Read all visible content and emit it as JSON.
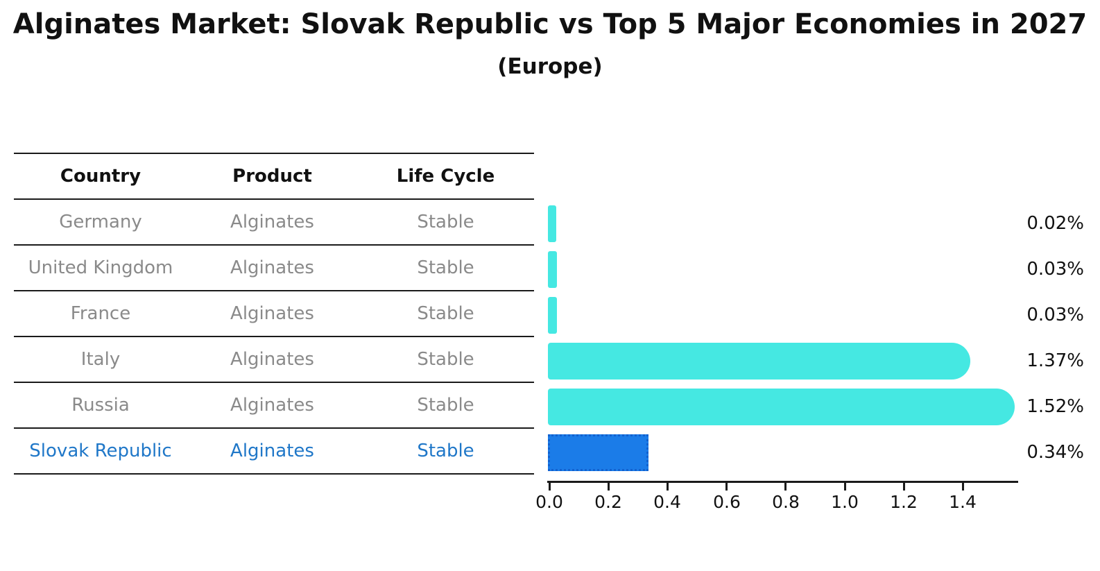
{
  "title": "Alginates Market: Slovak Republic vs Top 5 Major Economies in 2027",
  "subtitle": "(Europe)",
  "table": {
    "headers": [
      "Country",
      "Product",
      "Life Cycle"
    ],
    "rows": [
      {
        "country": "Germany",
        "product": "Alginates",
        "life_cycle": "Stable",
        "highlight": false
      },
      {
        "country": "United Kingdom",
        "product": "Alginates",
        "life_cycle": "Stable",
        "highlight": false
      },
      {
        "country": "France",
        "product": "Alginates",
        "life_cycle": "Stable",
        "highlight": false
      },
      {
        "country": "Italy",
        "product": "Alginates",
        "life_cycle": "Stable",
        "highlight": false
      },
      {
        "country": "Russia",
        "product": "Alginates",
        "life_cycle": "Stable",
        "highlight": false
      },
      {
        "country": "Slovak Republic",
        "product": "Alginates",
        "life_cycle": "Stable",
        "highlight": true
      }
    ]
  },
  "chart_data": {
    "type": "bar",
    "orientation": "horizontal",
    "title": "Alginates Market: Slovak Republic vs Top 5 Major Economies in 2027",
    "subtitle": "(Europe)",
    "categories": [
      "Germany",
      "United Kingdom",
      "France",
      "Italy",
      "Russia",
      "Slovak Republic"
    ],
    "values": [
      0.02,
      0.03,
      0.03,
      1.37,
      1.52,
      0.34
    ],
    "value_labels": [
      "0.02%",
      "0.03%",
      "0.03%",
      "1.37%",
      "1.52%",
      "0.34%"
    ],
    "highlight_index": 5,
    "xlabel": "",
    "ylabel": "",
    "xticks": [
      "0.0",
      "0.2",
      "0.4",
      "0.6",
      "0.8",
      "1.0",
      "1.2",
      "1.4"
    ],
    "xtick_values": [
      0.0,
      0.2,
      0.4,
      0.6,
      0.8,
      1.0,
      1.2,
      1.4
    ],
    "xlim": [
      0,
      1.58
    ],
    "grid": false,
    "legend_position": "none",
    "colors": {
      "bar": "#45e8e2",
      "highlight_bar": "#1b7ce8",
      "highlight_edge": "#1261cf",
      "text": "#111111",
      "muted_text": "#8a8a8a",
      "highlight_text": "#1f77c8",
      "axis": "#1a1a1a"
    }
  }
}
